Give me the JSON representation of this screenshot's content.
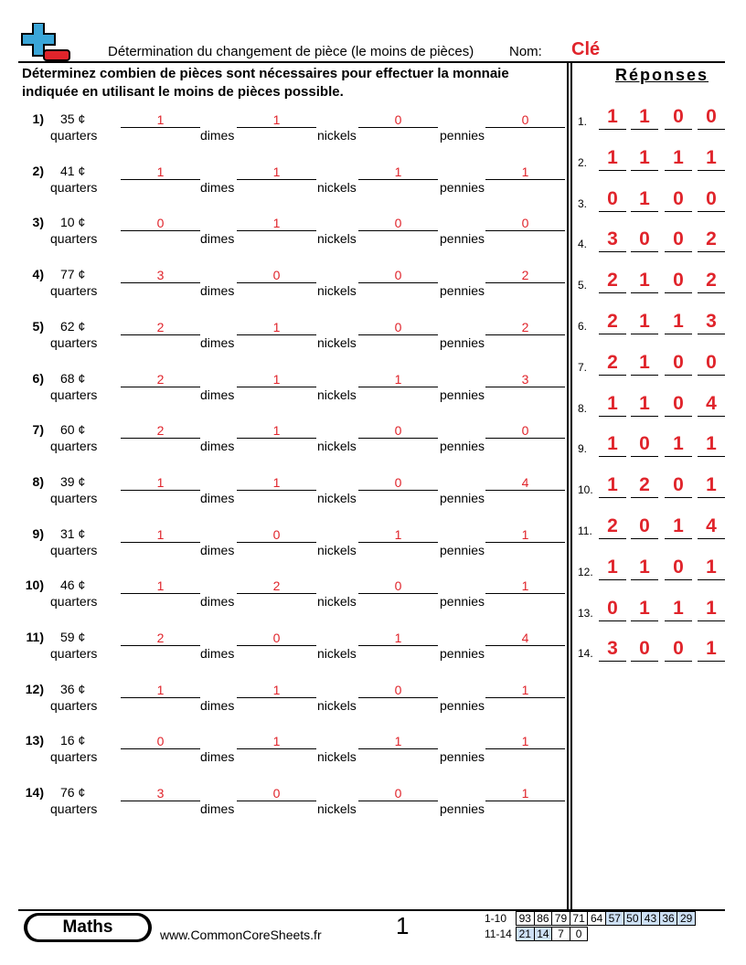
{
  "header": {
    "title": "Détermination du changement de pièce (le moins de pièces)",
    "name_label": "Nom:",
    "key_label": "Clé"
  },
  "instructions": "Déterminez combien de pièces sont nécessaires pour effectuer la monnaie indiquée en utilisant le moins de pièces possible.",
  "coin_labels": [
    "quarters",
    "dimes",
    "nickels",
    "pennies"
  ],
  "problems": [
    {
      "num": "1)",
      "amount": "35 ¢",
      "answers": [
        "1",
        "1",
        "0",
        "0"
      ]
    },
    {
      "num": "2)",
      "amount": "41 ¢",
      "answers": [
        "1",
        "1",
        "1",
        "1"
      ]
    },
    {
      "num": "3)",
      "amount": "10 ¢",
      "answers": [
        "0",
        "1",
        "0",
        "0"
      ]
    },
    {
      "num": "4)",
      "amount": "77 ¢",
      "answers": [
        "3",
        "0",
        "0",
        "2"
      ]
    },
    {
      "num": "5)",
      "amount": "62 ¢",
      "answers": [
        "2",
        "1",
        "0",
        "2"
      ]
    },
    {
      "num": "6)",
      "amount": "68 ¢",
      "answers": [
        "2",
        "1",
        "1",
        "3"
      ]
    },
    {
      "num": "7)",
      "amount": "60 ¢",
      "answers": [
        "2",
        "1",
        "0",
        "0"
      ]
    },
    {
      "num": "8)",
      "amount": "39 ¢",
      "answers": [
        "1",
        "1",
        "0",
        "4"
      ]
    },
    {
      "num": "9)",
      "amount": "31 ¢",
      "answers": [
        "1",
        "0",
        "1",
        "1"
      ]
    },
    {
      "num": "10)",
      "amount": "46 ¢",
      "answers": [
        "1",
        "2",
        "0",
        "1"
      ]
    },
    {
      "num": "11)",
      "amount": "59 ¢",
      "answers": [
        "2",
        "0",
        "1",
        "4"
      ]
    },
    {
      "num": "12)",
      "amount": "36 ¢",
      "answers": [
        "1",
        "1",
        "0",
        "1"
      ]
    },
    {
      "num": "13)",
      "amount": "16 ¢",
      "answers": [
        "0",
        "1",
        "1",
        "1"
      ]
    },
    {
      "num": "14)",
      "amount": "76 ¢",
      "answers": [
        "3",
        "0",
        "0",
        "1"
      ]
    }
  ],
  "answer_key": {
    "title": "Réponses",
    "rows": [
      {
        "num": "1.",
        "vals": [
          "1",
          "1",
          "0",
          "0"
        ]
      },
      {
        "num": "2.",
        "vals": [
          "1",
          "1",
          "1",
          "1"
        ]
      },
      {
        "num": "3.",
        "vals": [
          "0",
          "1",
          "0",
          "0"
        ]
      },
      {
        "num": "4.",
        "vals": [
          "3",
          "0",
          "0",
          "2"
        ]
      },
      {
        "num": "5.",
        "vals": [
          "2",
          "1",
          "0",
          "2"
        ]
      },
      {
        "num": "6.",
        "vals": [
          "2",
          "1",
          "1",
          "3"
        ]
      },
      {
        "num": "7.",
        "vals": [
          "2",
          "1",
          "0",
          "0"
        ]
      },
      {
        "num": "8.",
        "vals": [
          "1",
          "1",
          "0",
          "4"
        ]
      },
      {
        "num": "9.",
        "vals": [
          "1",
          "0",
          "1",
          "1"
        ]
      },
      {
        "num": "10.",
        "vals": [
          "1",
          "2",
          "0",
          "1"
        ]
      },
      {
        "num": "11.",
        "vals": [
          "2",
          "0",
          "1",
          "4"
        ]
      },
      {
        "num": "12.",
        "vals": [
          "1",
          "1",
          "0",
          "1"
        ]
      },
      {
        "num": "13.",
        "vals": [
          "0",
          "1",
          "1",
          "1"
        ]
      },
      {
        "num": "14.",
        "vals": [
          "3",
          "0",
          "0",
          "1"
        ]
      }
    ]
  },
  "footer": {
    "subject": "Maths",
    "website": "www.CommonCoreSheets.fr",
    "page_number": "1",
    "score_rows": [
      {
        "label": "1-10",
        "cells": [
          "93",
          "86",
          "79",
          "71",
          "64",
          "57",
          "50",
          "43",
          "36",
          "29"
        ]
      },
      {
        "label": "11-14",
        "cells": [
          "21",
          "14",
          "7",
          "0"
        ]
      }
    ]
  },
  "colors": {
    "answer_red": "#e0242b",
    "logo_blue": "#3aa6d8",
    "logo_red": "#e0242b",
    "score_blue": "#cde0f5"
  }
}
